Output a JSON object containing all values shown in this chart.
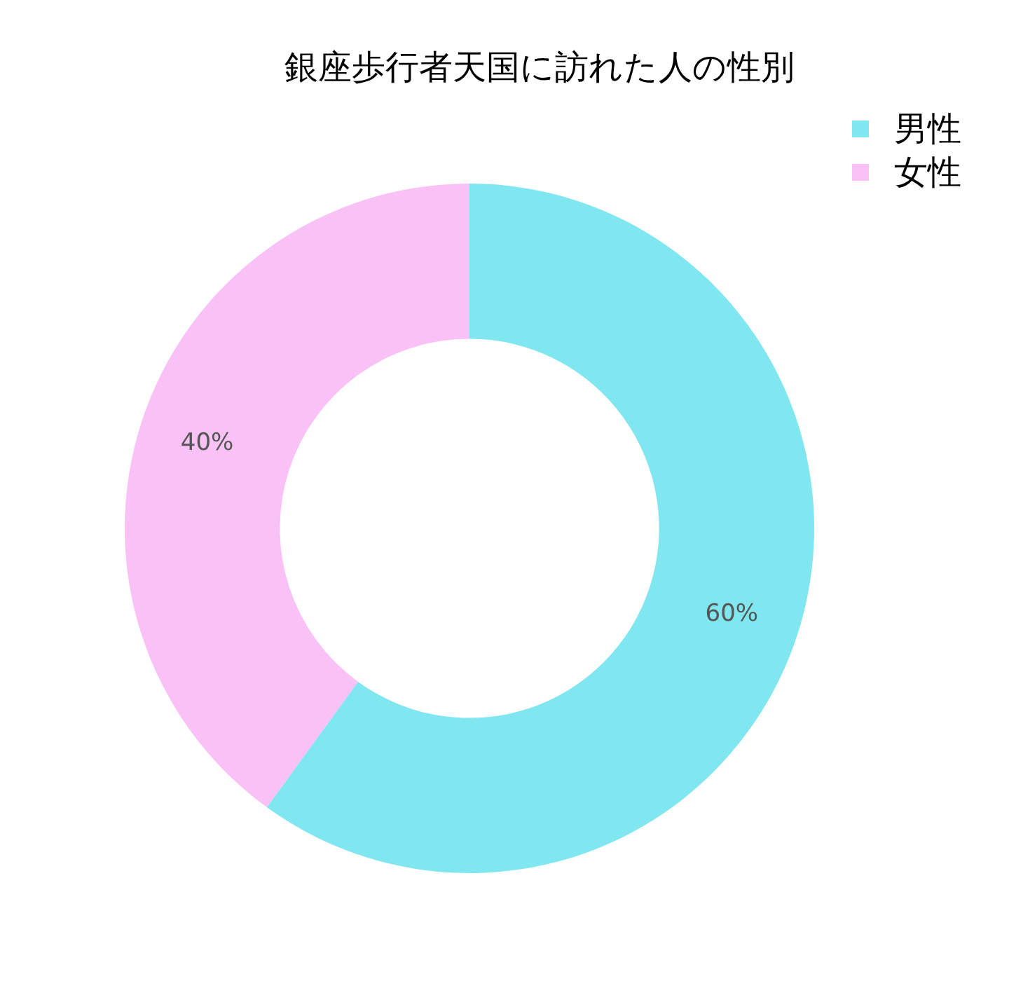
{
  "chart_data": {
    "type": "donut",
    "title": "銀座歩行者天国に訪れた人の性別",
    "categories": [
      "男性",
      "女性"
    ],
    "values": [
      60,
      40
    ],
    "value_labels": [
      "60%",
      "40%"
    ],
    "colors": [
      "#80e6f0",
      "#f9c1f5"
    ],
    "legend": "top right"
  }
}
